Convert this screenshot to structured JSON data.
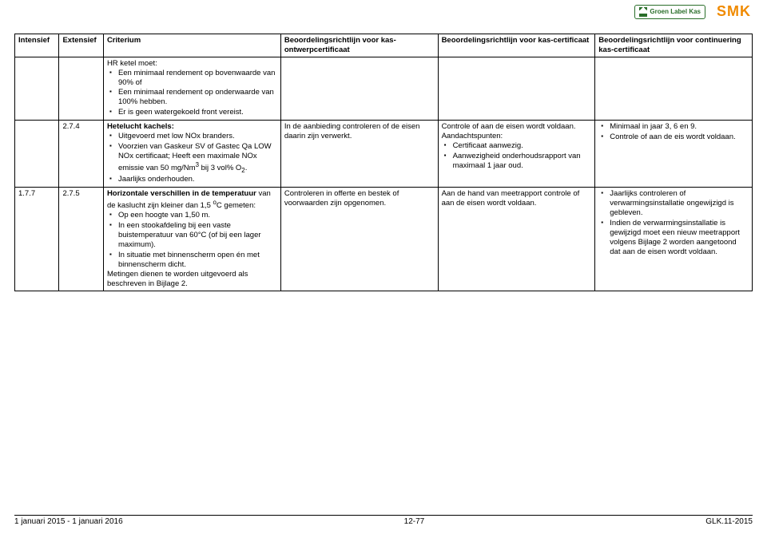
{
  "logos": {
    "glk_text": "Groen Label Kas",
    "smk_text": "SMK"
  },
  "headers": {
    "c1": "Intensief",
    "c2": "Extensief",
    "c3": "Criterium",
    "c4": "Beoordelingsrichtlijn voor kas-ontwerpcertificaat",
    "c5": "Beoordelingsrichtlijn voor kas-certificaat",
    "c6": "Beoordelingsrichtlijn voor continuering kas-certificaat"
  },
  "row1": {
    "c3_intro": "HR ketel moet:",
    "c3_b1": "Een minimaal rendement op bovenwaarde van 90% of",
    "c3_b2": "Een minimaal rendement  op onderwaarde van 100% hebben.",
    "c3_b3": "Er is geen watergekoeld front vereist."
  },
  "row2": {
    "c2": "2.7.4",
    "c3_title": "Hetelucht kachels:",
    "c3_b1": "Uitgevoerd met low NOx branders.",
    "c3_b2_pre": "Voorzien van Gaskeur SV of Gastec Qa LOW NOx certificaat; Heeft een maximale NOx emissie van 50 mg/Nm",
    "c3_b2_sup": "3",
    "c3_b2_mid": " bij 3 vol% O",
    "c3_b2_sub": "2",
    "c3_b2_end": ".",
    "c3_b3": "Jaarlijks onderhouden.",
    "c4": "In de aanbieding controleren of de eisen daarin zijn verwerkt.",
    "c5_l1": "Controle of aan de eisen wordt voldaan.",
    "c5_l2": "Aandachtspunten:",
    "c5_b1": "Certificaat aanwezig.",
    "c5_b2": "Aanwezigheid onderhoudsrapport van maximaal 1 jaar oud.",
    "c6_b1": "Minimaal in jaar 3, 6 en 9.",
    "c6_b2": "Controle of aan de eis wordt voldaan."
  },
  "row3": {
    "c1": "1.7.7",
    "c2": "2.7.5",
    "c3_strong": "Horizontale verschillen in de temperatuur",
    "c3_rest_pre": " van de kaslucht zijn kleiner dan 1,5 ",
    "c3_sup_o": "o",
    "c3_rest_post": "C gemeten:",
    "c3_b1": "Op een hoogte van 1,50 m.",
    "c3_b2": "In een stookafdeling bij een vaste buistemperatuur van 60°C (of bij een lager maximum).",
    "c3_b3": "In situatie met binnenscherm open én met binnenscherm dicht.",
    "c3_tail": "Metingen dienen te worden uitgevoerd als beschreven in Bijlage 2.",
    "c4": "Controleren in offerte en bestek of voorwaarden zijn opgenomen.",
    "c5": "Aan de hand van meetrapport controle of aan de eisen wordt voldaan.",
    "c6_b1": "Jaarlijks controleren of verwarmingsinstallatie ongewijzigd is gebleven.",
    "c6_b2": "Indien de verwarmingsinstallatie is gewijzigd moet een nieuw meetrapport volgens Bijlage 2 worden aangetoond dat aan de eisen wordt voldaan."
  },
  "footer": {
    "left": "1 januari 2015 - 1 januari 2016",
    "center": "12-77",
    "right": "GLK.11-2015"
  }
}
